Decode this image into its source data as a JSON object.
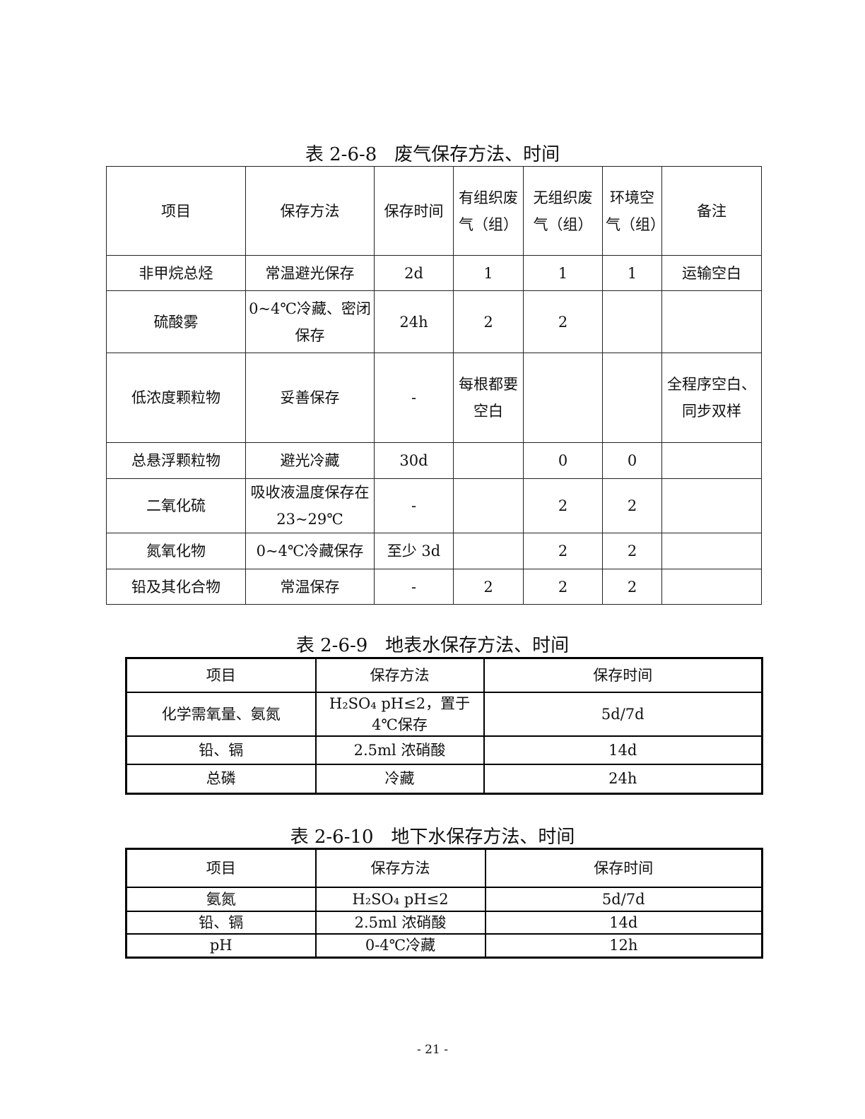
{
  "table1": {
    "caption": "表 2-6-8   废气保存方法、时间",
    "headers": [
      "项目",
      "保存方法",
      "保存时间",
      "有组织废气（组）",
      "无组织废气（组）",
      "环境空气（组）",
      "备注"
    ],
    "rows": [
      [
        "非甲烷总烃",
        "常温避光保存",
        "2d",
        "1",
        "1",
        "1",
        "运输空白"
      ],
      [
        "硫酸雾",
        "0~4℃冷藏、密闭保存",
        "24h",
        "2",
        "2",
        "",
        ""
      ],
      [
        "低浓度颗粒物",
        "妥善保存",
        "-",
        "每根都要空白",
        "",
        "",
        "全程序空白、同步双样"
      ],
      [
        "总悬浮颗粒物",
        "避光冷藏",
        "30d",
        "",
        "0",
        "0",
        ""
      ],
      [
        "二氧化硫",
        "吸收液温度保存在 23~29℃",
        "-",
        "",
        "2",
        "2",
        ""
      ],
      [
        "氮氧化物",
        "0~4℃冷藏保存",
        "至少 3d",
        "",
        "2",
        "2",
        ""
      ],
      [
        "铅及其化合物",
        "常温保存",
        "-",
        "2",
        "2",
        "2",
        ""
      ]
    ]
  },
  "table2": {
    "caption": "表 2-6-9   地表水保存方法、时间",
    "headers": [
      "项目",
      "保存方法",
      "保存时间"
    ],
    "rows": [
      [
        "化学需氧量、氨氮",
        "H₂SO₄  pH≤2，置于4℃保存",
        "5d/7d"
      ],
      [
        "铅、镉",
        "2.5ml 浓硝酸",
        "14d"
      ],
      [
        "总磷",
        "冷藏",
        "24h"
      ]
    ]
  },
  "table3": {
    "caption": "表 2-6-10   地下水保存方法、时间",
    "headers": [
      "项目",
      "保存方法",
      "保存时间"
    ],
    "rows": [
      [
        "氨氮",
        "H₂SO₄  pH≤2",
        "5d/7d"
      ],
      [
        "铅、镉",
        "2.5ml 浓硝酸",
        "14d"
      ],
      [
        "pH",
        "0-4℃冷藏",
        "12h"
      ]
    ]
  },
  "page_number": "- 21 -"
}
